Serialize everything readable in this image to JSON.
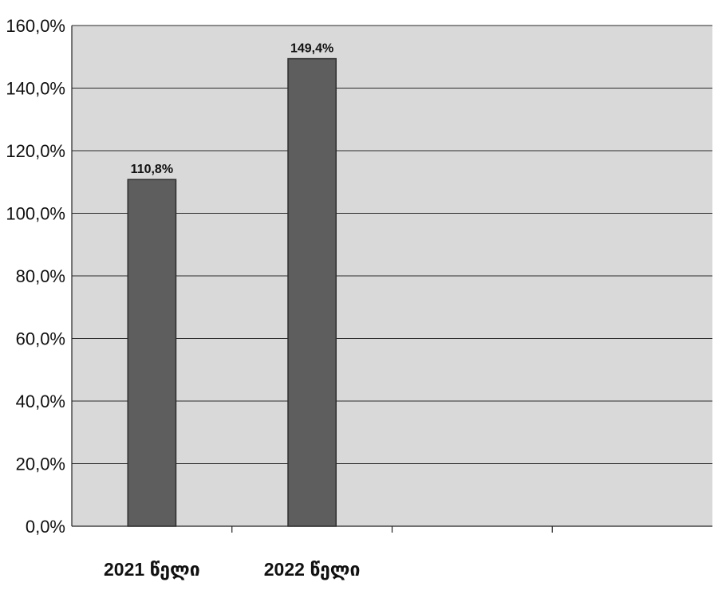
{
  "chart_data": {
    "type": "bar",
    "title": "",
    "xlabel": "",
    "ylabel": "",
    "categories": [
      "2021 წელი",
      "2022 წელი"
    ],
    "values": [
      110.8,
      149.4
    ],
    "data_labels": [
      "110,8%",
      "149,4%"
    ],
    "ylim": [
      0,
      160
    ],
    "yticks": [
      {
        "value": 0,
        "label": "0,0%"
      },
      {
        "value": 20,
        "label": "20,0%"
      },
      {
        "value": 40,
        "label": "40,0%"
      },
      {
        "value": 60,
        "label": "60,0%"
      },
      {
        "value": 80,
        "label": "80,0%"
      },
      {
        "value": 100,
        "label": "100,0%"
      },
      {
        "value": 120,
        "label": "120,0%"
      },
      {
        "value": 140,
        "label": "140,0%"
      },
      {
        "value": 160,
        "label": "160,0%"
      }
    ],
    "grid": true,
    "legend": "none",
    "colors": {
      "bar": "#5e5e5e",
      "bar_edge": "#2e2e2e",
      "plot_background": "#d9d9d9",
      "gridline": "#2a2a2a"
    }
  }
}
